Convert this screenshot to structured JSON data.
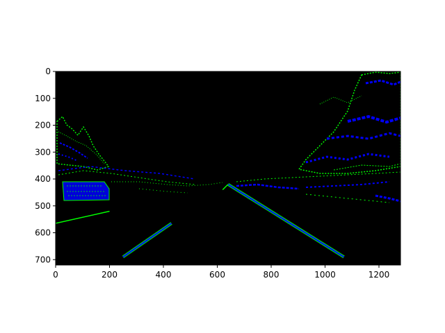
{
  "figure": {
    "image_width": 1280,
    "image_height": 720,
    "x_ticks": [
      0,
      200,
      400,
      600,
      800,
      1000,
      1200
    ],
    "y_ticks": [
      0,
      100,
      200,
      300,
      400,
      500,
      600,
      700
    ],
    "colors": {
      "background": "#000000",
      "edge_green": "#00ff00",
      "edge_blue": "#0000ff",
      "axis": "#000000",
      "page": "#ffffff"
    }
  },
  "chart_data": {
    "type": "heatmap",
    "xlabel": "",
    "ylabel": "",
    "xlim": [
      0,
      1280
    ],
    "ylim": [
      720,
      0
    ],
    "lane_lines": [
      {
        "x1": 250,
        "y1": 690,
        "x2": 430,
        "y2": 565
      },
      {
        "x1": 1070,
        "y1": 690,
        "x2": 640,
        "y2": 420
      },
      {
        "x1": 0,
        "y1": 565,
        "x2": 200,
        "y2": 520
      },
      {
        "x1": 640,
        "y1": 420,
        "x2": 620,
        "y2": 440
      }
    ]
  }
}
